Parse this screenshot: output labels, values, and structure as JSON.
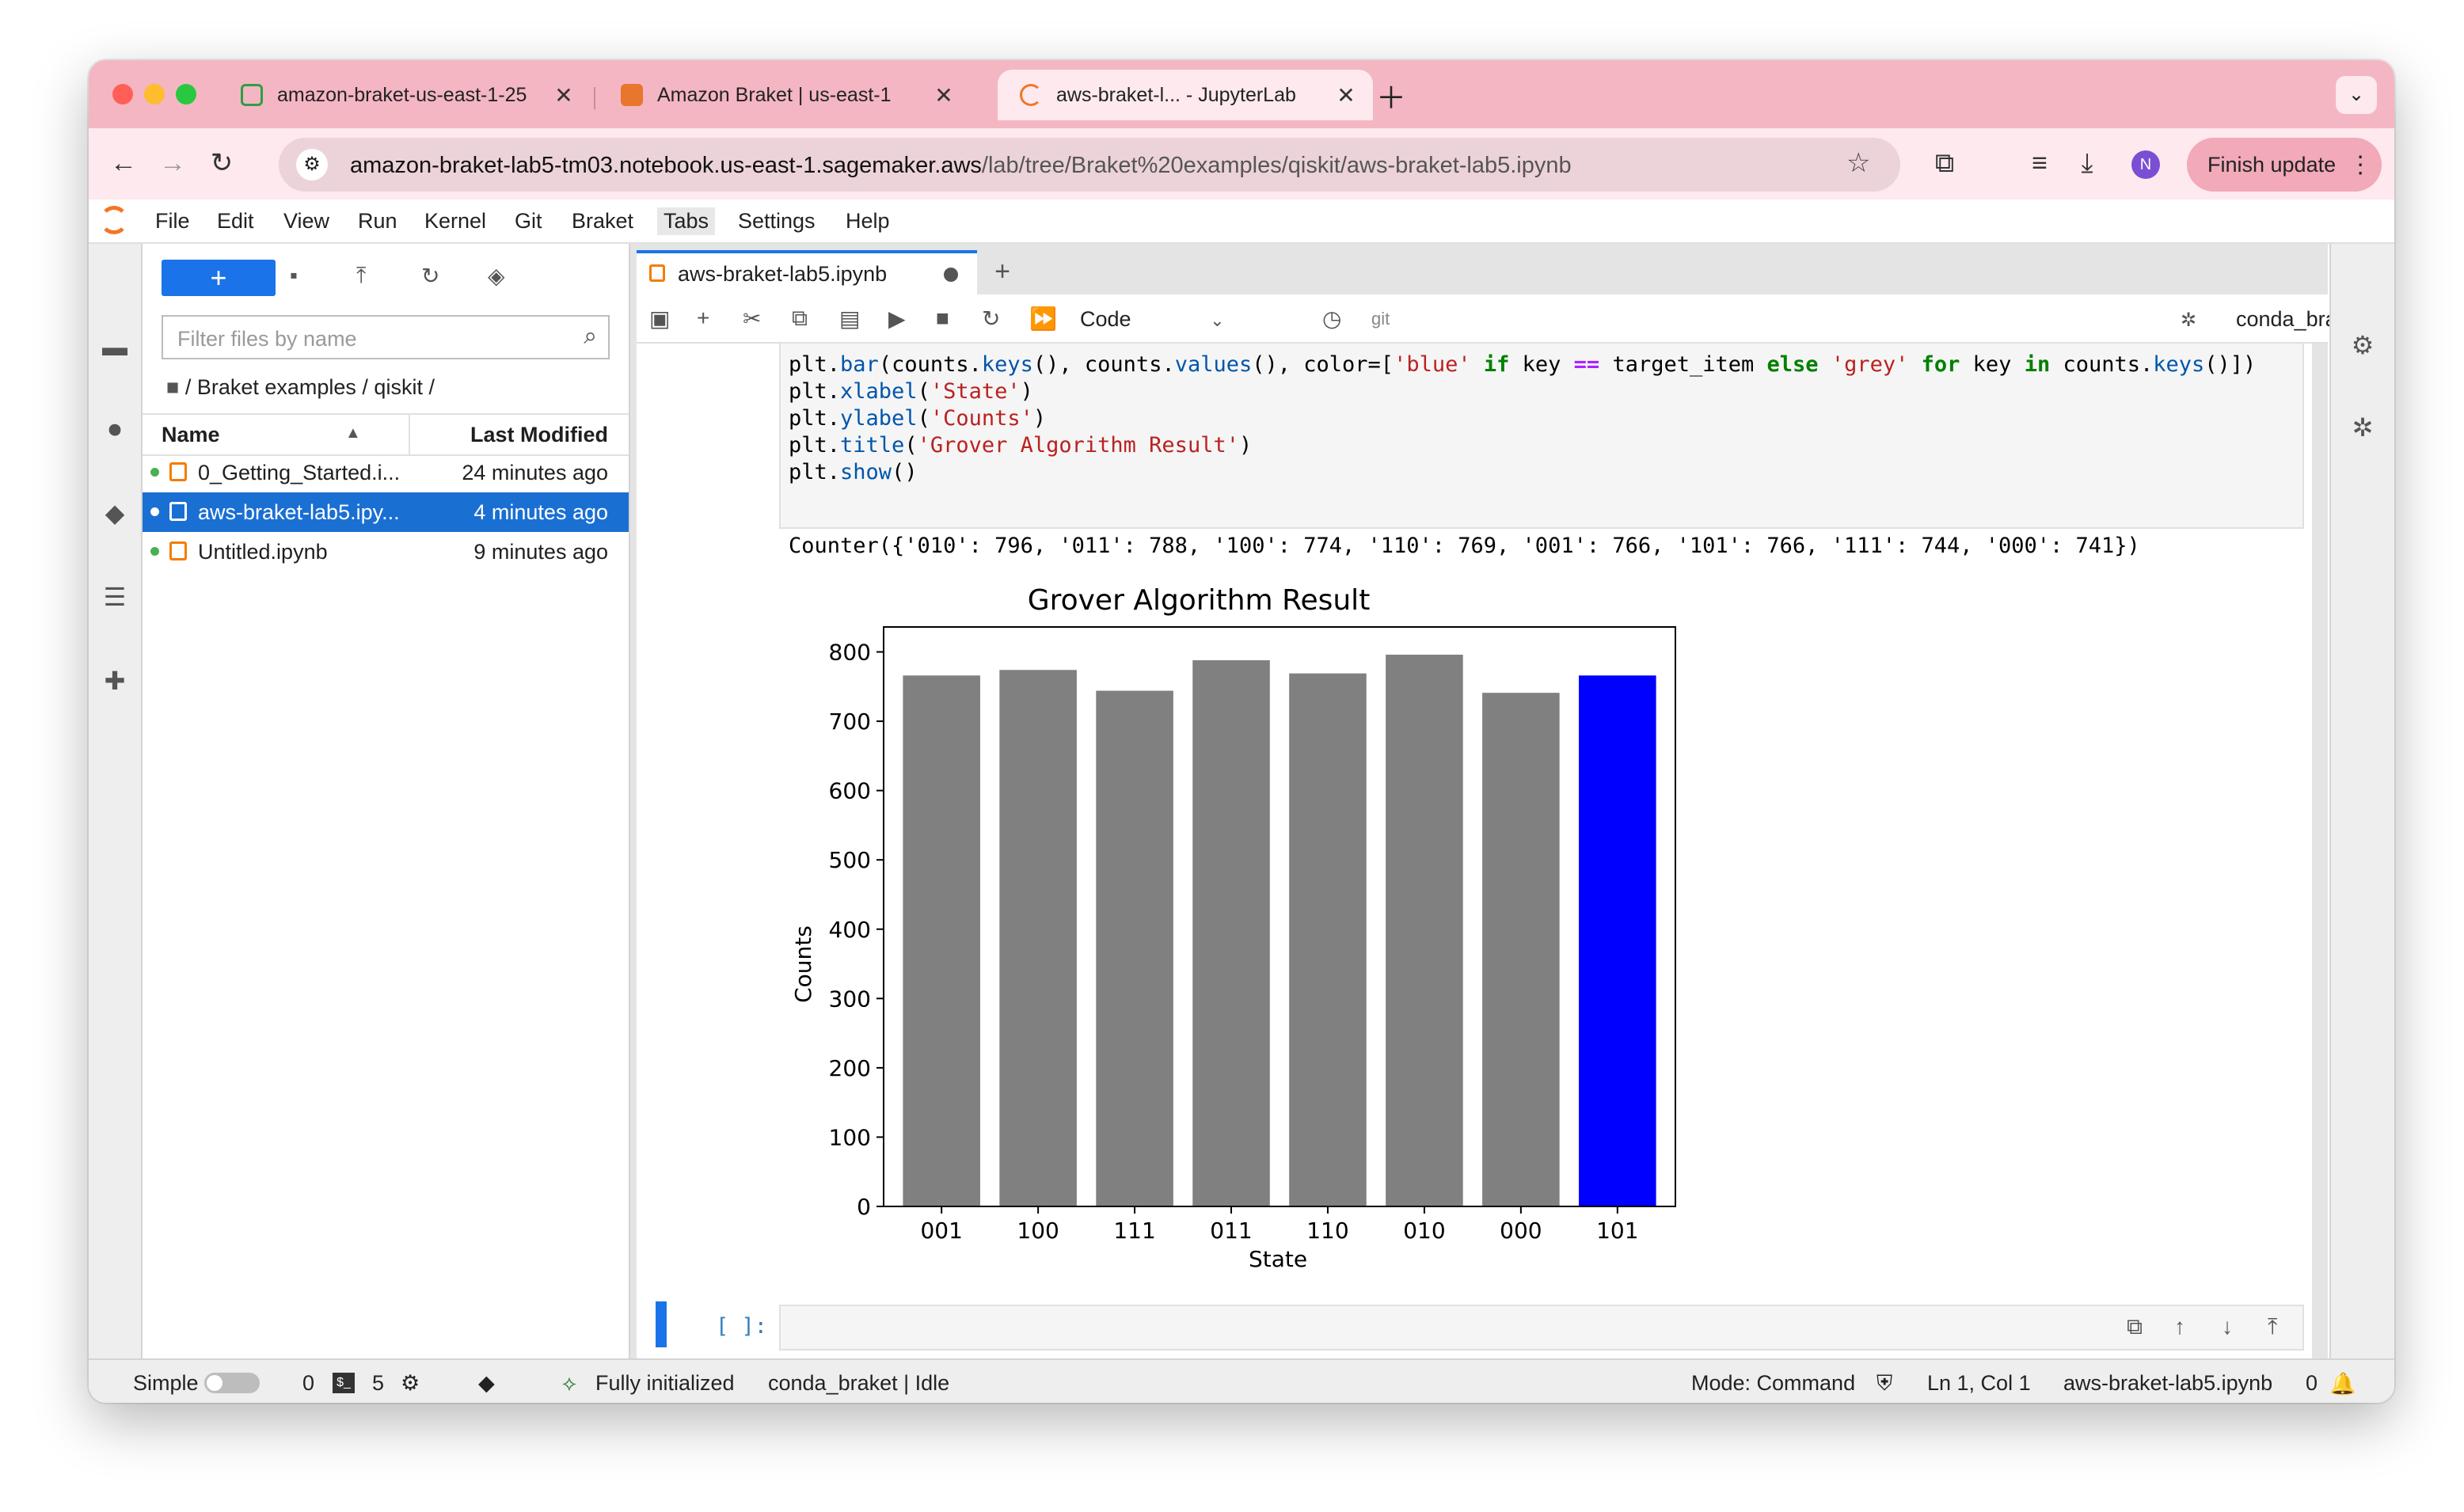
{
  "browser": {
    "tabs": [
      {
        "title": "amazon-braket-us-east-1-25",
        "favicon_color": "#2e9e47"
      },
      {
        "title": "Amazon Braket | us-east-1",
        "favicon_color": "#e8762d"
      },
      {
        "title": "aws-braket-l... - JupyterLab",
        "favicon_color": "#f37626"
      }
    ],
    "url_host": "amazon-braket-lab5-tm03.notebook.us-east-1.sagemaker.aws",
    "url_path": "/lab/tree/Braket%20examples/qiskit/aws-braket-lab5.ipynb",
    "profile_initial": "N",
    "finish_update_label": "Finish update"
  },
  "menu": [
    "File",
    "Edit",
    "View",
    "Run",
    "Kernel",
    "Git",
    "Braket",
    "Tabs",
    "Settings",
    "Help"
  ],
  "filebrowser": {
    "filter_placeholder": "Filter files by name",
    "breadcrumb": "/ Braket examples / qiskit /",
    "col_name": "Name",
    "col_modified": "Last Modified",
    "files": [
      {
        "name": "0_Getting_Started.i...",
        "modified": "24 minutes ago"
      },
      {
        "name": "aws-braket-lab5.ipy...",
        "modified": "4 minutes ago"
      },
      {
        "name": "Untitled.ipynb",
        "modified": "9 minutes ago"
      }
    ]
  },
  "notebook": {
    "tab_title": "aws-braket-lab5.ipynb",
    "cell_type": "Code",
    "git_label": "git",
    "kernel": "conda_braket",
    "output_text": "Counter({'010': 796, '011': 788, '100': 774, '110': 769, '001': 766, '101': 766, '111': 744, '000': 741})",
    "prompt": "[ ]:"
  },
  "status": {
    "mode_label": "Simple",
    "terminals": "0",
    "kernels": "5",
    "init": "Fully initialized",
    "kernel_status": "conda_braket | Idle",
    "mode": "Mode: Command",
    "cursor": "Ln 1, Col 1",
    "file": "aws-braket-lab5.ipynb",
    "notifications": "0"
  },
  "chart_data": {
    "type": "bar",
    "title": "Grover Algorithm Result",
    "xlabel": "State",
    "ylabel": "Counts",
    "categories": [
      "001",
      "100",
      "111",
      "011",
      "110",
      "010",
      "000",
      "101"
    ],
    "values": [
      766,
      774,
      744,
      788,
      769,
      796,
      741,
      766
    ],
    "colors": [
      "#808080",
      "#808080",
      "#808080",
      "#808080",
      "#808080",
      "#808080",
      "#808080",
      "#0000ff"
    ],
    "ylim": [
      0,
      836
    ],
    "yticks": [
      0,
      100,
      200,
      300,
      400,
      500,
      600,
      700,
      800
    ],
    "grid": false
  }
}
